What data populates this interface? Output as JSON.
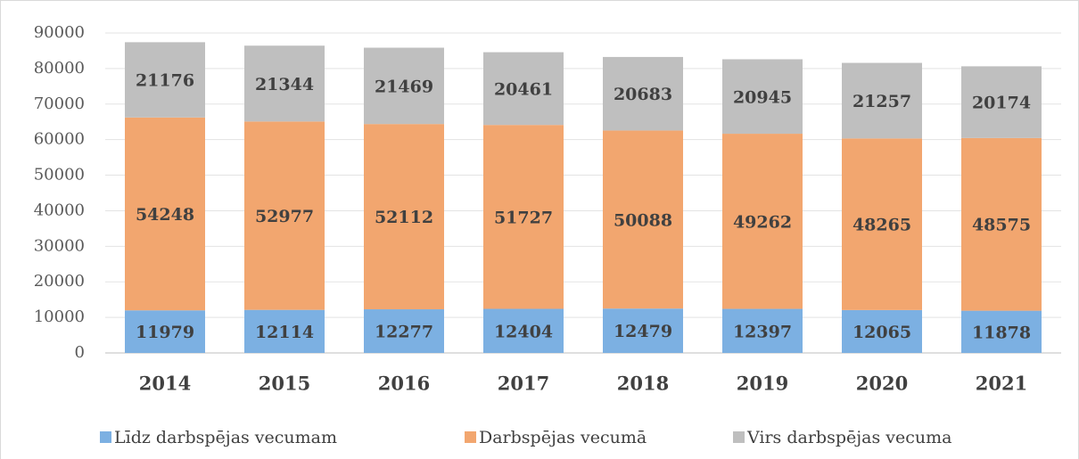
{
  "chart_data": {
    "type": "stacked_bar",
    "categories": [
      "2014",
      "2015",
      "2016",
      "2017",
      "2018",
      "2019",
      "2020",
      "2021"
    ],
    "series": [
      {
        "name": "Līdz darbspējas vecumam",
        "color": "#7cb0e2",
        "values": [
          11979,
          12114,
          12277,
          12404,
          12479,
          12397,
          12065,
          11878
        ]
      },
      {
        "name": "Darbspējas vecumā",
        "color": "#f2a66f",
        "values": [
          54248,
          52977,
          52112,
          51727,
          50088,
          49262,
          48265,
          48575
        ]
      },
      {
        "name": "Virs darbspējas vecuma",
        "color": "#bfbfbf",
        "values": [
          21176,
          21344,
          21469,
          20461,
          20683,
          20945,
          21257,
          20174
        ]
      }
    ],
    "ylim": [
      0,
      90000
    ],
    "yticks": [
      0,
      10000,
      20000,
      30000,
      40000,
      50000,
      60000,
      70000,
      80000,
      90000
    ],
    "grid": true,
    "legend": "bottom"
  }
}
